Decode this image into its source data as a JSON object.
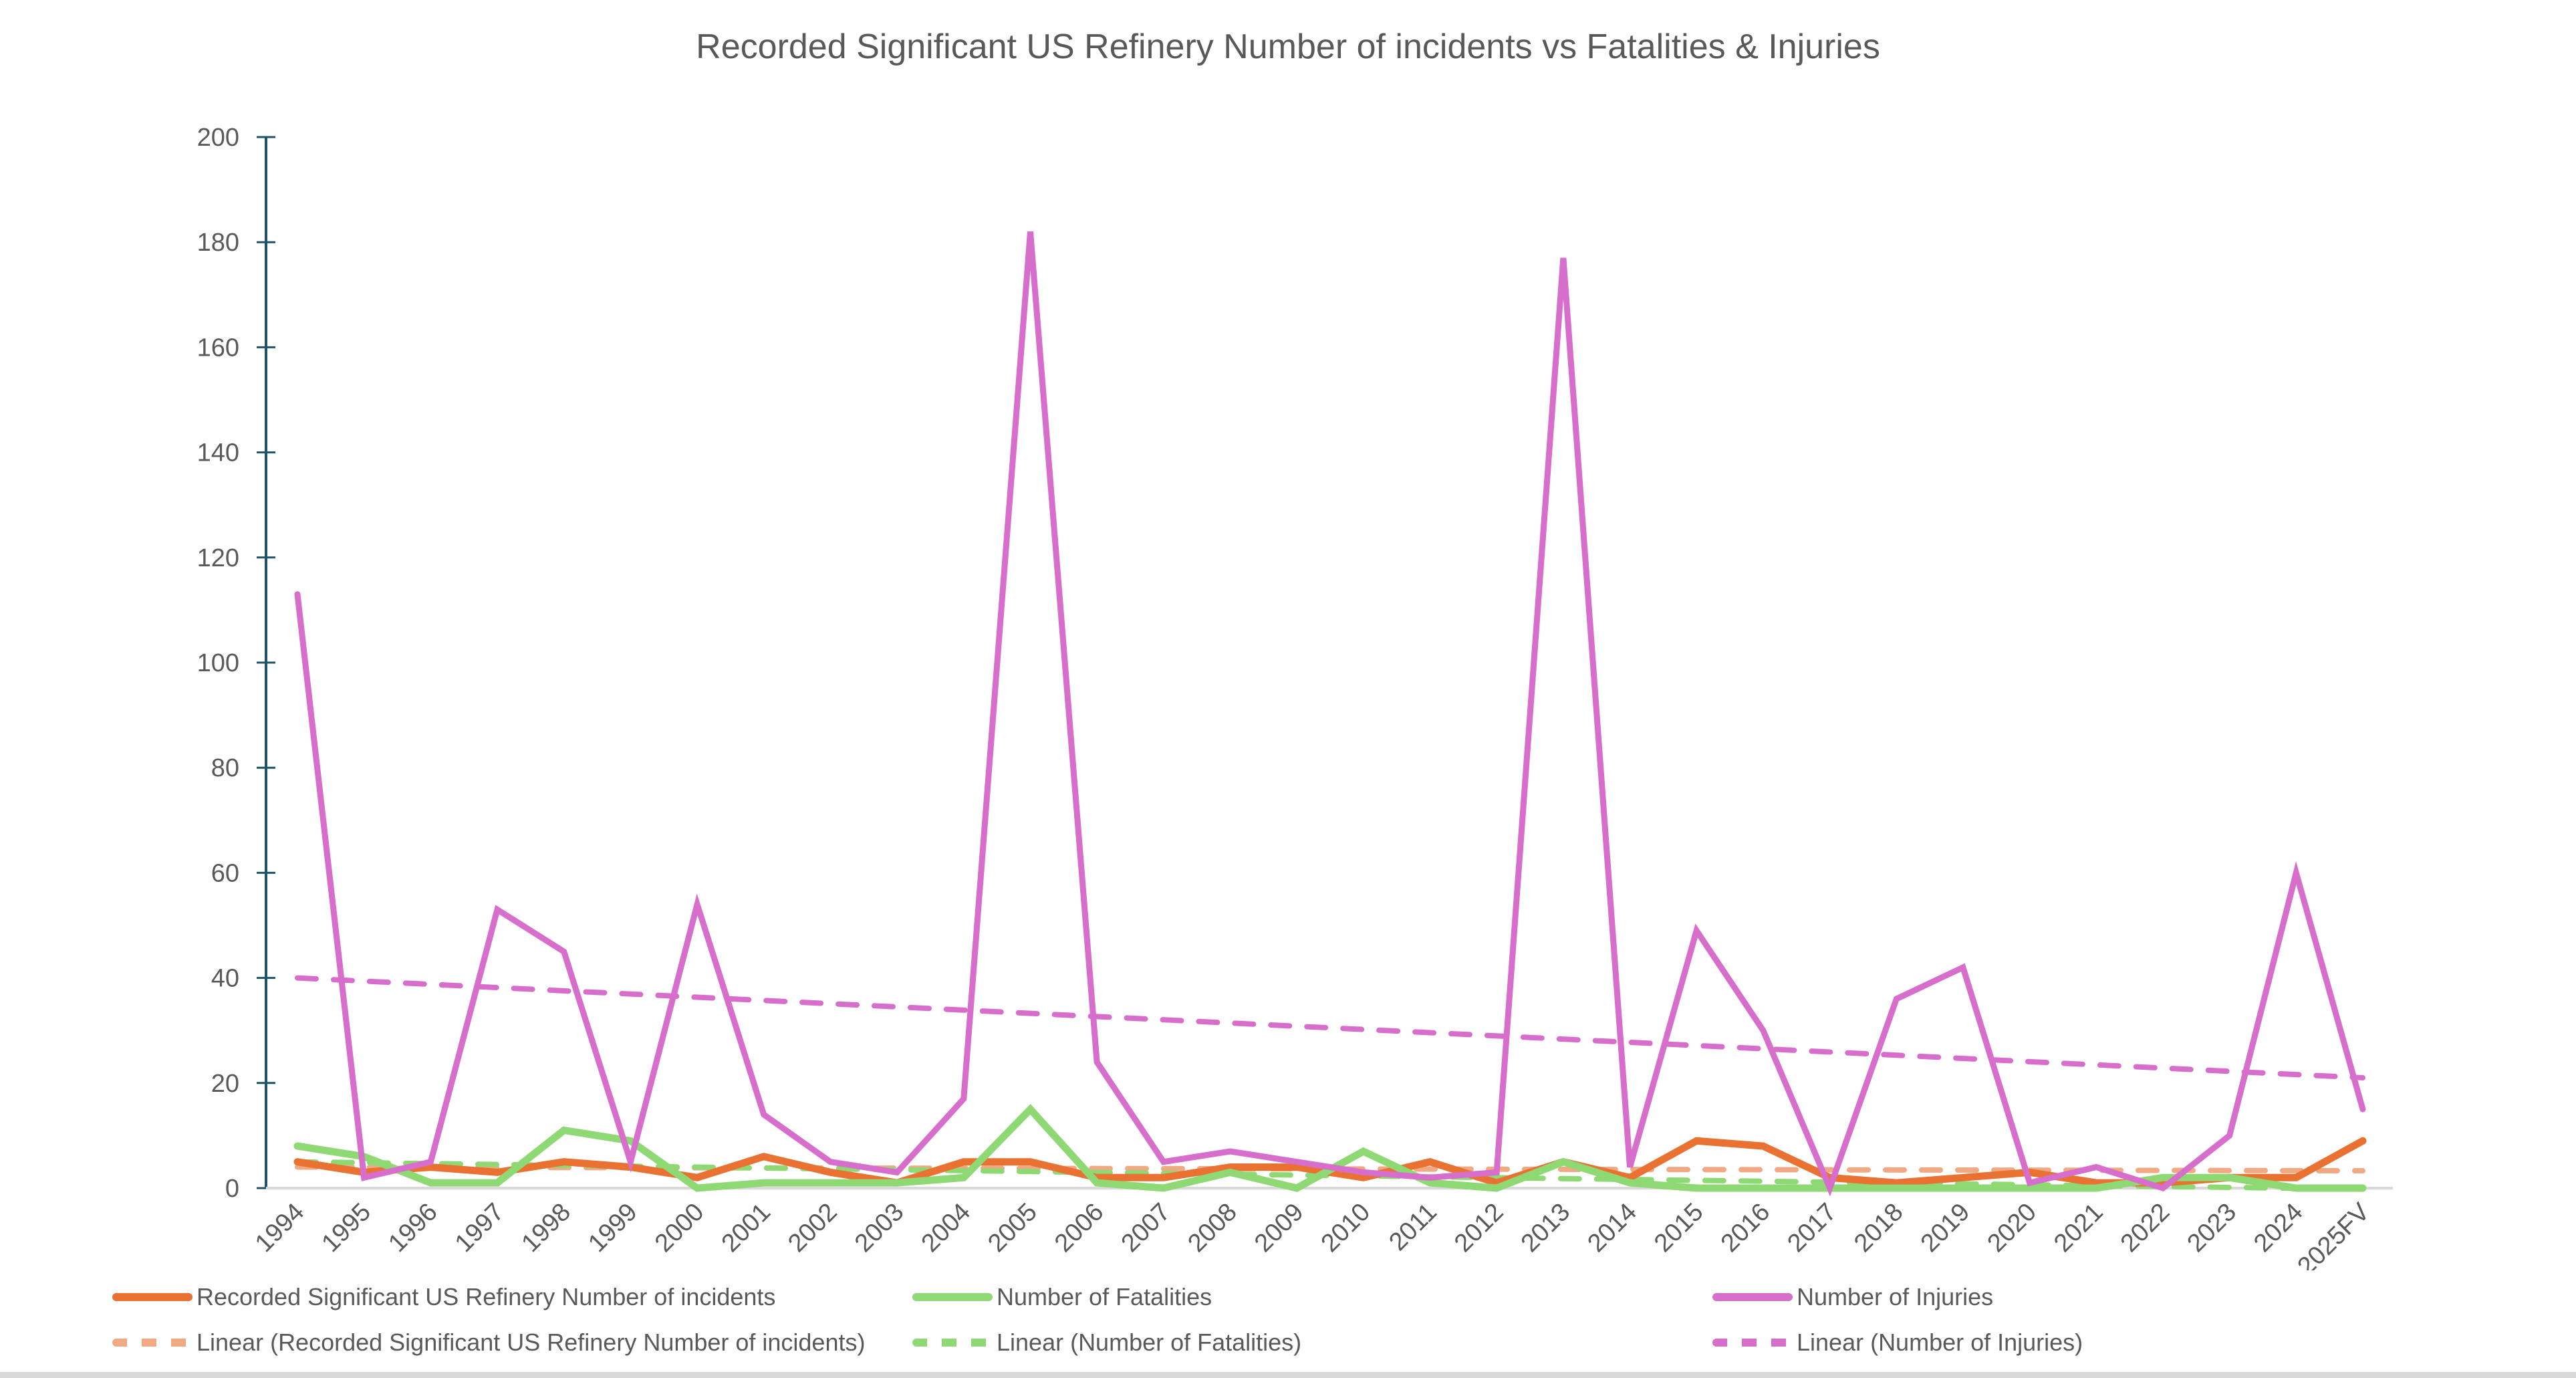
{
  "chart_data": {
    "type": "line",
    "title": "Recorded Significant US Refinery Number of incidents vs Fatalities & Injuries",
    "xlabel": "",
    "ylabel": "",
    "ylim": [
      0,
      200
    ],
    "yticks": [
      0,
      20,
      40,
      60,
      80,
      100,
      120,
      140,
      160,
      180,
      200
    ],
    "grid": false,
    "legend_position": "bottom",
    "categories": [
      "1994",
      "1995",
      "1996",
      "1997",
      "1998",
      "1999",
      "2000",
      "2001",
      "2002",
      "2003",
      "2004",
      "2005",
      "2006",
      "2007",
      "2008",
      "2009",
      "2010",
      "2011",
      "2012",
      "2013",
      "2014",
      "2015",
      "2016",
      "2017",
      "2018",
      "2019",
      "2020",
      "2021",
      "2022",
      "2023",
      "2024",
      "2025FV"
    ],
    "series": [
      {
        "name": "Recorded Significant US Refinery Number of incidents",
        "color": "#E97132",
        "style": "solid",
        "values": [
          5,
          3,
          4,
          3,
          5,
          4,
          2,
          6,
          3,
          1,
          5,
          5,
          2,
          2,
          4,
          4,
          2,
          5,
          1,
          5,
          2,
          9,
          8,
          2,
          1,
          2,
          3,
          1,
          1,
          2,
          2,
          9
        ]
      },
      {
        "name": "Number of Fatalities",
        "color": "#8ED973",
        "style": "solid",
        "values": [
          8,
          6,
          1,
          1,
          11,
          9,
          0,
          1,
          1,
          1,
          2,
          15,
          1,
          0,
          3,
          0,
          7,
          1,
          0,
          5,
          1,
          0,
          0,
          0,
          0,
          0,
          0,
          0,
          2,
          2,
          0,
          0
        ]
      },
      {
        "name": "Number of Injuries",
        "color": "#D86ECC",
        "style": "solid",
        "values": [
          113,
          2,
          5,
          53,
          45,
          5,
          54,
          14,
          5,
          3,
          17,
          182,
          24,
          5,
          7,
          5,
          3,
          2,
          3,
          177,
          4,
          49,
          30,
          0,
          36,
          42,
          1,
          4,
          0,
          10,
          60,
          15
        ]
      }
    ],
    "trendlines": [
      {
        "name": "Linear (Recorded Significant US Refinery Number of incidents)",
        "color": "#F1A983",
        "style": "dashed",
        "start": 4.0,
        "end": 3.3
      },
      {
        "name": "Linear (Number of Fatalities)",
        "color": "#8ED973",
        "style": "dashed",
        "start": 5.0,
        "end": -0.2
      },
      {
        "name": "Linear (Number of Injuries)",
        "color": "#D86ECC",
        "style": "dashed",
        "start": 40.0,
        "end": 21.0
      }
    ]
  },
  "legend": {
    "items": [
      {
        "label": "Recorded Significant US Refinery Number of incidents"
      },
      {
        "label": "Number of Fatalities"
      },
      {
        "label": "Number of Injuries"
      },
      {
        "label": "Linear (Recorded Significant US Refinery Number of incidents)"
      },
      {
        "label": "Linear (Number of Fatalities)"
      },
      {
        "label": "Linear (Number of Injuries)"
      }
    ]
  },
  "colors": {
    "axis": "#1F5468",
    "baseline": "#D9D9D9",
    "text": "#595959"
  }
}
